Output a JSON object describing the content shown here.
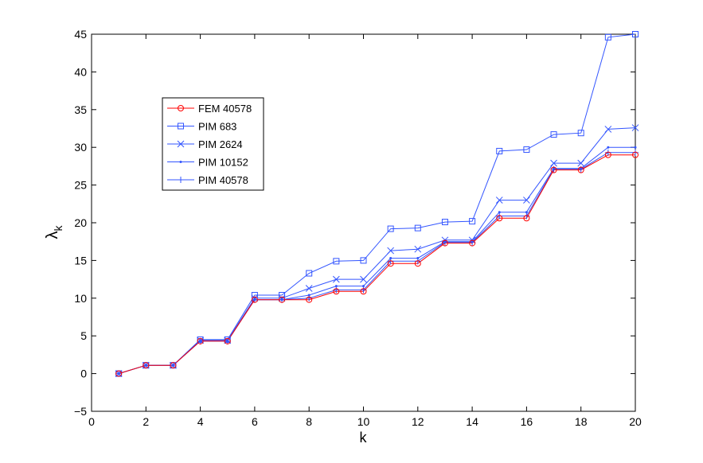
{
  "chart_data": {
    "type": "line",
    "title": "",
    "xlabel": "k",
    "ylabel": "λ",
    "ylabel_subscript": "k",
    "xlim": [
      0,
      20
    ],
    "ylim": [
      -5,
      45
    ],
    "xticks": [
      0,
      2,
      4,
      6,
      8,
      10,
      12,
      14,
      16,
      18,
      20
    ],
    "yticks": [
      -5,
      0,
      5,
      10,
      15,
      20,
      25,
      30,
      35,
      40,
      45
    ],
    "grid": false,
    "legend_position": "upper-left",
    "x": [
      1,
      2,
      3,
      4,
      5,
      6,
      7,
      8,
      9,
      10,
      11,
      12,
      13,
      14,
      15,
      16,
      17,
      18,
      19,
      20
    ],
    "series": [
      {
        "name": "FEM 40578",
        "color": "#ff0000",
        "marker": "circle",
        "values": [
          0,
          1.1,
          1.1,
          4.3,
          4.3,
          9.8,
          9.8,
          9.8,
          10.9,
          10.9,
          14.6,
          14.6,
          17.3,
          17.3,
          20.6,
          20.6,
          27.0,
          27.0,
          29.0,
          29.0
        ]
      },
      {
        "name": "PIM 683",
        "color": "#3355ff",
        "marker": "square",
        "values": [
          0,
          1.1,
          1.1,
          4.5,
          4.5,
          10.4,
          10.4,
          13.3,
          14.9,
          15.0,
          19.2,
          19.3,
          20.1,
          20.2,
          29.5,
          29.7,
          31.7,
          31.9,
          44.6,
          45.0
        ]
      },
      {
        "name": "PIM 2624",
        "color": "#3355ff",
        "marker": "x",
        "values": [
          0,
          1.1,
          1.1,
          4.4,
          4.4,
          10.0,
          10.0,
          11.3,
          12.5,
          12.5,
          16.3,
          16.5,
          17.7,
          17.7,
          23.0,
          23.0,
          27.9,
          27.9,
          32.4,
          32.6
        ]
      },
      {
        "name": "PIM 10152",
        "color": "#3355ff",
        "marker": "dot",
        "values": [
          0,
          1.1,
          1.1,
          4.3,
          4.3,
          9.8,
          9.8,
          10.4,
          11.6,
          11.6,
          15.3,
          15.3,
          17.5,
          17.5,
          21.4,
          21.4,
          27.2,
          27.2,
          30.0,
          30.0
        ]
      },
      {
        "name": "PIM 40578",
        "color": "#3355ff",
        "marker": "plus",
        "values": [
          0,
          1.1,
          1.1,
          4.3,
          4.3,
          9.8,
          9.8,
          10.0,
          11.1,
          11.1,
          14.9,
          14.9,
          17.4,
          17.4,
          20.9,
          20.9,
          27.1,
          27.1,
          29.3,
          29.3
        ]
      }
    ]
  }
}
